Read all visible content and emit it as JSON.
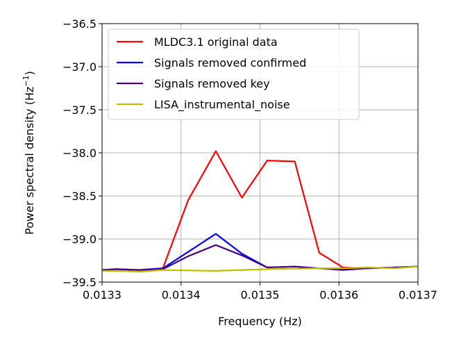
{
  "chart_data": {
    "type": "line",
    "title": "",
    "xlabel": "Frequency (Hz)",
    "ylabel_main": "Power spectral density (Hz",
    "ylabel_sup": "−1",
    "ylabel_close": ")",
    "xlim": [
      0.0133,
      0.0137
    ],
    "ylim": [
      -39.5,
      -36.5
    ],
    "xticks": [
      0.0133,
      0.0134,
      0.0135,
      0.0136,
      0.0137
    ],
    "xtick_labels": [
      "0.0133",
      "0.0134",
      "0.0135",
      "0.0136",
      "0.0137"
    ],
    "yticks": [
      -39.5,
      -39.0,
      -38.5,
      -38.0,
      -37.5,
      -37.0,
      -36.5
    ],
    "ytick_labels": [
      "−39.5",
      "−39.0",
      "−38.5",
      "−38.0",
      "−37.5",
      "−37.0",
      "−36.5"
    ],
    "grid": true,
    "legend_position": "top-left",
    "series": [
      {
        "name": "MLDC3.1 original data",
        "color": "#ff0000",
        "x": [
          0.0133,
          0.013318,
          0.013347,
          0.013377,
          0.013409,
          0.013444,
          0.013477,
          0.013509,
          0.013544,
          0.013575,
          0.013605,
          0.013636,
          0.01367,
          0.0137
        ],
        "y": [
          -39.36,
          -39.35,
          -39.36,
          -39.34,
          -38.55,
          -37.98,
          -38.52,
          -38.09,
          -38.1,
          -39.16,
          -39.33,
          -39.34,
          -39.33,
          -39.32
        ]
      },
      {
        "name": "Signals removed confirmed",
        "color": "#0000ff",
        "x": [
          0.0133,
          0.013318,
          0.013347,
          0.013377,
          0.013409,
          0.013444,
          0.013477,
          0.013509,
          0.013544,
          0.013575,
          0.013605,
          0.013636,
          0.01367,
          0.0137
        ],
        "y": [
          -39.36,
          -39.35,
          -39.36,
          -39.34,
          -39.15,
          -38.94,
          -39.17,
          -39.33,
          -39.32,
          -39.34,
          -39.35,
          -39.34,
          -39.33,
          -39.32
        ]
      },
      {
        "name": "Signals removed key",
        "color": "#4b0082",
        "x": [
          0.0133,
          0.013318,
          0.013347,
          0.013377,
          0.013409,
          0.013444,
          0.013477,
          0.013509,
          0.013544,
          0.013575,
          0.013605,
          0.013636,
          0.01367,
          0.0137
        ],
        "y": [
          -39.36,
          -39.35,
          -39.36,
          -39.35,
          -39.2,
          -39.07,
          -39.19,
          -39.33,
          -39.32,
          -39.34,
          -39.36,
          -39.34,
          -39.33,
          -39.32
        ]
      },
      {
        "name": "LISA_instrumental_noise",
        "color": "#bfbf00",
        "x": [
          0.0133,
          0.013318,
          0.013347,
          0.013377,
          0.013409,
          0.013444,
          0.013477,
          0.013509,
          0.013544,
          0.013575,
          0.013605,
          0.013636,
          0.01367,
          0.0137
        ],
        "y": [
          -39.37,
          -39.37,
          -39.38,
          -39.36,
          -39.365,
          -39.37,
          -39.36,
          -39.35,
          -39.345,
          -39.34,
          -39.34,
          -39.33,
          -39.34,
          -39.32
        ]
      }
    ]
  }
}
